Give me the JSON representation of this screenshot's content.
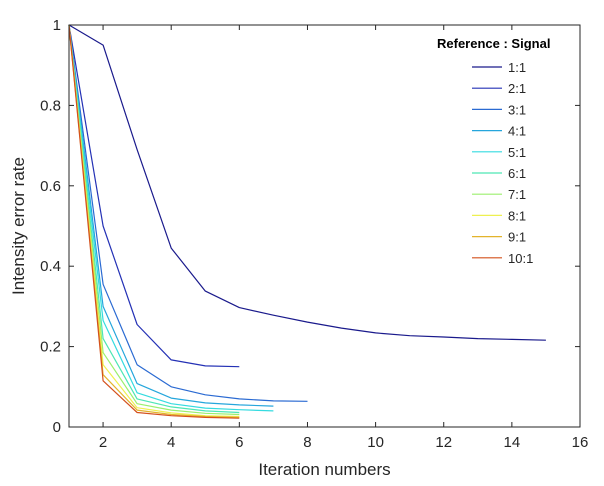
{
  "chart_data": {
    "type": "line",
    "xlabel": "Iteration numbers",
    "ylabel": "Intensity error rate",
    "xlim": [
      1,
      16
    ],
    "ylim": [
      0,
      1
    ],
    "xticks": [
      2,
      4,
      6,
      8,
      10,
      12,
      14,
      16
    ],
    "yticks": [
      0,
      0.2,
      0.4,
      0.6,
      0.8,
      1
    ],
    "xtick_labels": [
      "2",
      "4",
      "6",
      "8",
      "10",
      "12",
      "14",
      "16"
    ],
    "ytick_labels": [
      "0",
      "0.2",
      "0.4",
      "0.6",
      "0.8",
      "1"
    ],
    "grid": false,
    "legend_title": "Reference : Signal",
    "legend_position": "top-right",
    "series": [
      {
        "name": "1:1",
        "color": "#1a1a8c",
        "x": [
          1,
          2,
          3,
          4,
          5,
          6,
          7,
          8,
          9,
          10,
          11,
          12,
          13,
          14,
          15
        ],
        "y": [
          1.0,
          0.95,
          0.69,
          0.445,
          0.338,
          0.297,
          0.278,
          0.261,
          0.246,
          0.234,
          0.227,
          0.224,
          0.22,
          0.218,
          0.216
        ]
      },
      {
        "name": "2:1",
        "color": "#2431b5",
        "x": [
          1,
          2,
          3,
          4,
          5,
          6
        ],
        "y": [
          1.0,
          0.5,
          0.255,
          0.167,
          0.152,
          0.15
        ]
      },
      {
        "name": "3:1",
        "color": "#2a6ad2",
        "x": [
          1,
          2,
          3,
          4,
          5,
          6,
          7,
          8
        ],
        "y": [
          1.0,
          0.355,
          0.155,
          0.1,
          0.08,
          0.07,
          0.065,
          0.064
        ]
      },
      {
        "name": "4:1",
        "color": "#25a6dc",
        "x": [
          1,
          2,
          3,
          4,
          5,
          6,
          7
        ],
        "y": [
          1.0,
          0.3,
          0.108,
          0.072,
          0.06,
          0.055,
          0.052
        ]
      },
      {
        "name": "5:1",
        "color": "#35dbe0",
        "x": [
          1,
          2,
          3,
          4,
          5,
          6,
          7
        ],
        "y": [
          1.0,
          0.265,
          0.085,
          0.058,
          0.047,
          0.043,
          0.04
        ]
      },
      {
        "name": "6:1",
        "color": "#4de6b4",
        "x": [
          1,
          2,
          3,
          4,
          5,
          6
        ],
        "y": [
          1.0,
          0.22,
          0.07,
          0.05,
          0.04,
          0.036
        ]
      },
      {
        "name": "7:1",
        "color": "#9bef6e",
        "x": [
          1,
          2,
          3,
          4,
          5,
          6
        ],
        "y": [
          1.0,
          0.185,
          0.058,
          0.042,
          0.034,
          0.031
        ]
      },
      {
        "name": "8:1",
        "color": "#eef050",
        "x": [
          1,
          2,
          3,
          4,
          5,
          6
        ],
        "y": [
          1.0,
          0.155,
          0.048,
          0.035,
          0.028,
          0.026
        ]
      },
      {
        "name": "9:1",
        "color": "#e3b42c",
        "x": [
          1,
          2,
          3,
          4,
          5,
          6
        ],
        "y": [
          1.0,
          0.13,
          0.042,
          0.031,
          0.026,
          0.024
        ]
      },
      {
        "name": "10:1",
        "color": "#d4501c",
        "x": [
          1,
          2,
          3,
          4,
          5,
          6
        ],
        "y": [
          1.0,
          0.115,
          0.036,
          0.028,
          0.024,
          0.022
        ]
      }
    ]
  }
}
